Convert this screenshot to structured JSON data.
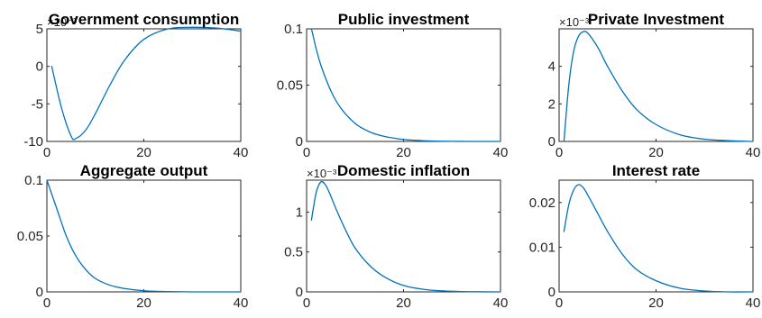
{
  "chart_data": [
    {
      "type": "line",
      "title": "Government consumption",
      "exponent_label": "×10⁻³",
      "x": [
        1,
        3,
        5,
        6,
        8,
        10,
        13,
        16,
        20,
        25,
        30,
        35,
        40
      ],
      "series": [
        {
          "values": [
            0.0,
            -5.5,
            -9.3,
            -9.6,
            -8.5,
            -6.3,
            -2.5,
            0.8,
            3.6,
            5.0,
            5.2,
            5.1,
            4.7
          ]
        }
      ],
      "xlim": [
        0,
        40
      ],
      "ylim": [
        -10,
        5
      ],
      "xticks": [
        0,
        20,
        40
      ],
      "yticks": [
        -10,
        -5,
        0,
        5
      ],
      "line_color": "#0072BD"
    },
    {
      "type": "line",
      "title": "Public investment",
      "x": [
        1,
        2,
        3,
        5,
        7,
        10,
        13,
        16,
        20,
        25,
        30,
        35,
        40
      ],
      "series": [
        {
          "values": [
            0.1,
            0.082,
            0.067,
            0.045,
            0.03,
            0.016,
            0.0085,
            0.0045,
            0.0018,
            0.0005,
            0.0001,
            0.0,
            0.0
          ]
        }
      ],
      "xlim": [
        0,
        40
      ],
      "ylim": [
        0,
        0.1
      ],
      "xticks": [
        0,
        20,
        40
      ],
      "yticks": [
        0,
        0.05,
        0.1
      ],
      "line_color": "#0072BD"
    },
    {
      "type": "line",
      "title": "Private Investment",
      "exponent_label": "×10⁻³",
      "x": [
        1,
        2,
        3,
        4,
        5,
        6,
        8,
        10,
        13,
        16,
        20,
        25,
        30,
        35,
        40
      ],
      "series": [
        {
          "values": [
            0.0,
            3.0,
            4.8,
            5.6,
            5.85,
            5.75,
            5.0,
            4.0,
            2.7,
            1.7,
            0.9,
            0.35,
            0.12,
            0.04,
            0.0
          ]
        }
      ],
      "xlim": [
        0,
        40
      ],
      "ylim": [
        0,
        6
      ],
      "xticks": [
        0,
        20,
        40
      ],
      "yticks": [
        0,
        2,
        4
      ],
      "line_color": "#0072BD"
    },
    {
      "type": "line",
      "title": "Aggregate output",
      "x": [
        0,
        2,
        4,
        6,
        8,
        10,
        13,
        16,
        20,
        25,
        30,
        35,
        40
      ],
      "series": [
        {
          "values": [
            0.1,
            0.075,
            0.05,
            0.032,
            0.02,
            0.012,
            0.006,
            0.003,
            0.001,
            0.0003,
            0.0,
            0.0,
            0.0
          ]
        }
      ],
      "xlim": [
        0,
        40
      ],
      "ylim": [
        0,
        0.1
      ],
      "xticks": [
        0,
        20,
        40
      ],
      "yticks": [
        0,
        0.05,
        0.1
      ],
      "line_color": "#0072BD"
    },
    {
      "type": "line",
      "title": "Domestic inflation",
      "exponent_label": "×10⁻³",
      "x": [
        1,
        2,
        3,
        4,
        5,
        6,
        8,
        10,
        13,
        16,
        20,
        25,
        30,
        35,
        40
      ],
      "series": [
        {
          "values": [
            0.9,
            1.25,
            1.38,
            1.33,
            1.2,
            1.05,
            0.78,
            0.55,
            0.33,
            0.19,
            0.08,
            0.025,
            0.008,
            0.002,
            0.0
          ]
        }
      ],
      "xlim": [
        0,
        40
      ],
      "ylim": [
        0,
        1.4
      ],
      "xticks": [
        0,
        20,
        40
      ],
      "yticks": [
        0,
        0.5,
        1
      ],
      "line_color": "#0072BD"
    },
    {
      "type": "line",
      "title": "Interest rate",
      "x": [
        1,
        2,
        3,
        4,
        5,
        6,
        8,
        10,
        13,
        16,
        20,
        25,
        30,
        35,
        40
      ],
      "series": [
        {
          "values": [
            0.0135,
            0.0195,
            0.0228,
            0.024,
            0.0233,
            0.0215,
            0.0175,
            0.0135,
            0.0085,
            0.005,
            0.0025,
            0.0008,
            0.0002,
            0.0,
            0.0
          ]
        }
      ],
      "xlim": [
        0,
        40
      ],
      "ylim": [
        0,
        0.025
      ],
      "xticks": [
        0,
        20,
        40
      ],
      "yticks": [
        0,
        0.01,
        0.02
      ],
      "line_color": "#0072BD"
    }
  ]
}
